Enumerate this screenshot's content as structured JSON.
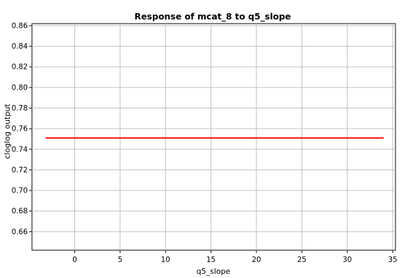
{
  "chart_data": {
    "type": "line",
    "title": "Response of mcat_8 to q5_slope",
    "xlabel": "q5_slope",
    "ylabel": "cloglog output",
    "xlim": [
      -4.7,
      35.3
    ],
    "ylim": [
      0.642,
      0.862
    ],
    "x_ticks": [
      0,
      5,
      10,
      15,
      20,
      25,
      30,
      35
    ],
    "y_ticks": [
      0.66,
      0.68,
      0.7,
      0.72,
      0.74,
      0.76,
      0.78,
      0.8,
      0.82,
      0.84,
      0.86
    ],
    "grid": true,
    "series": [
      {
        "color": "#ff0000",
        "x": [
          -3.2,
          34.0
        ],
        "y": [
          0.751,
          0.751
        ]
      }
    ]
  }
}
